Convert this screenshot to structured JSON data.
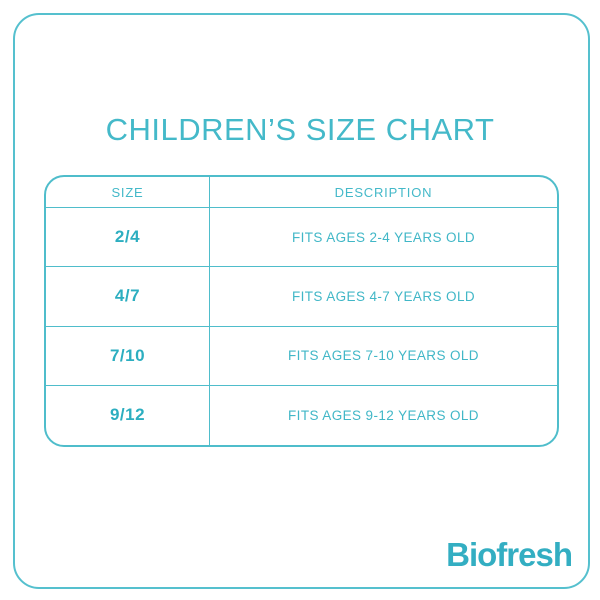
{
  "page": {
    "title": "CHILDREN’S SIZE CHART",
    "brand": "Biofresh"
  },
  "table": {
    "headers": [
      "SIZE",
      "DESCRIPTION"
    ],
    "rows": [
      {
        "size": "2/4",
        "description": "FITS AGES 2-4 YEARS OLD"
      },
      {
        "size": "4/7",
        "description": "FITS AGES 4-7 YEARS OLD"
      },
      {
        "size": "7/10",
        "description": "FITS AGES 7-10 YEARS OLD"
      },
      {
        "size": "9/12",
        "description": "FITS AGES 9-12 YEARS OLD"
      }
    ]
  },
  "colors": {
    "accent": "#44b9c9",
    "accent_bold": "#2caec0",
    "table_border": "#4fbdcb",
    "frame_border": "#55c0ce",
    "logo": "#33aec2",
    "background": "#ffffff"
  }
}
